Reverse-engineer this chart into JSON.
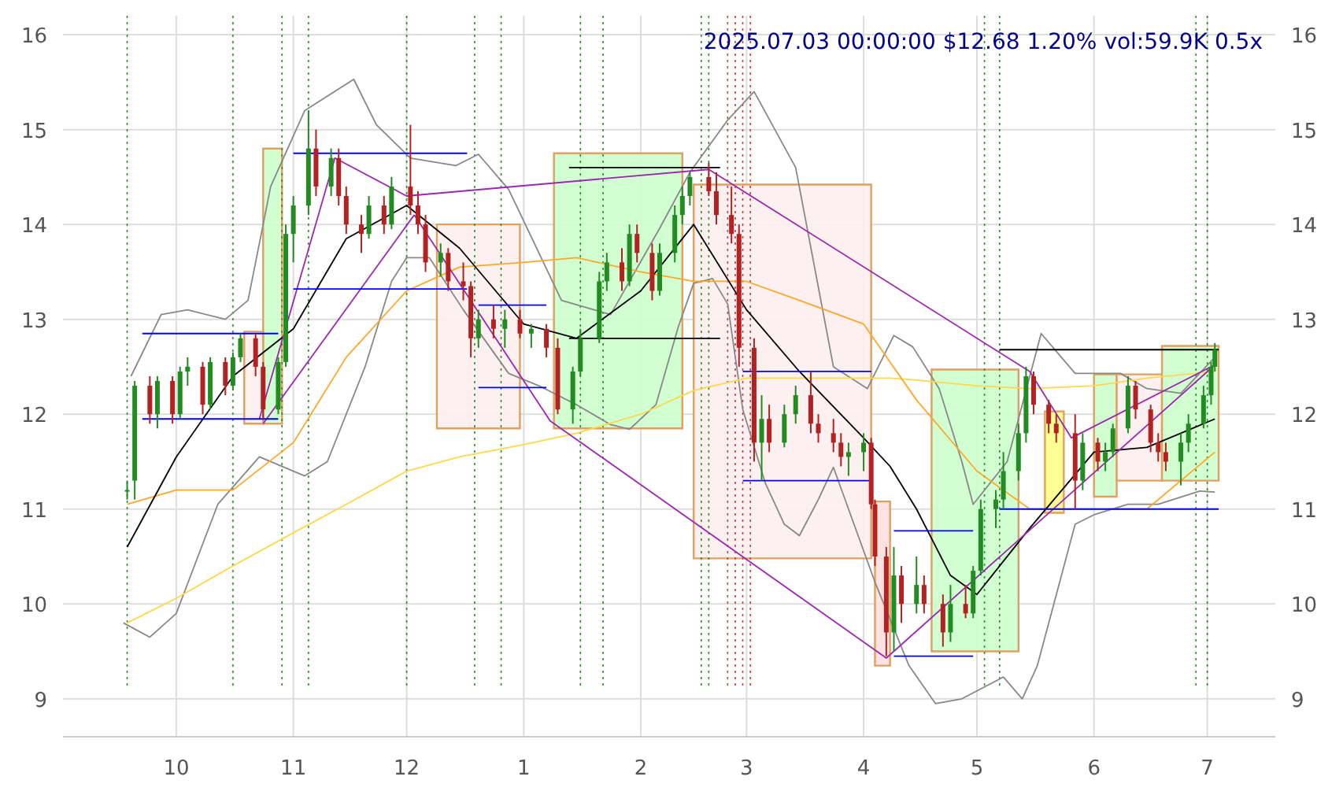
{
  "chart_data": {
    "type": "candlestick",
    "title": "2025.07.03 00:00:00 $12.68 1.20% vol:59.9K 0.5x",
    "xlim": [
      "2024-09-01",
      "2025-07-19"
    ],
    "xticks": [
      {
        "value": "2024-10-01",
        "label": "10"
      },
      {
        "value": "2024-11-01",
        "label": "11"
      },
      {
        "value": "2024-12-01",
        "label": "12"
      },
      {
        "value": "2025-01-01",
        "label": "1"
      },
      {
        "value": "2025-02-01",
        "label": "2"
      },
      {
        "value": "2025-03-01",
        "label": "3"
      },
      {
        "value": "2025-04-01",
        "label": "4"
      },
      {
        "value": "2025-05-01",
        "label": "5"
      },
      {
        "value": "2025-06-01",
        "label": "6"
      },
      {
        "value": "2025-07-01",
        "label": "7"
      }
    ],
    "ylim": [
      8.6,
      16.2
    ],
    "yticks": [
      9,
      10,
      11,
      12,
      13,
      14,
      15,
      16
    ],
    "y2lim": [
      8.6,
      16.2
    ],
    "y2ticks": [
      9,
      10,
      11,
      12,
      13,
      14,
      15,
      16
    ],
    "grid": true,
    "x": [
      "2024-09-18",
      "2024-09-20",
      "2024-09-24",
      "2024-09-26",
      "2024-09-30",
      "2024-10-02",
      "2024-10-04",
      "2024-10-08",
      "2024-10-10",
      "2024-10-14",
      "2024-10-16",
      "2024-10-18",
      "2024-10-22",
      "2024-10-24",
      "2024-10-28",
      "2024-10-30",
      "2024-11-01",
      "2024-11-05",
      "2024-11-07",
      "2024-11-11",
      "2024-11-13",
      "2024-11-15",
      "2024-11-19",
      "2024-11-21",
      "2024-11-25",
      "2024-11-27",
      "2024-12-02",
      "2024-12-04",
      "2024-12-06",
      "2024-12-10",
      "2024-12-12",
      "2024-12-16",
      "2024-12-18",
      "2024-12-20",
      "2024-12-24",
      "2024-12-27",
      "2024-12-31",
      "2025-01-03",
      "2025-01-07",
      "2025-01-10",
      "2025-01-14",
      "2025-01-16",
      "2025-01-21",
      "2025-01-23",
      "2025-01-27",
      "2025-01-29",
      "2025-01-31",
      "2025-02-04",
      "2025-02-06",
      "2025-02-10",
      "2025-02-12",
      "2025-02-14",
      "2025-02-19",
      "2025-02-21",
      "2025-02-25",
      "2025-02-27",
      "2025-03-03",
      "2025-03-05",
      "2025-03-07",
      "2025-03-11",
      "2025-03-14",
      "2025-03-18",
      "2025-03-20",
      "2025-03-24",
      "2025-03-26",
      "2025-03-28",
      "2025-04-01",
      "2025-04-03",
      "2025-04-04",
      "2025-04-07",
      "2025-04-09",
      "2025-04-11",
      "2025-04-15",
      "2025-04-17",
      "2025-04-22",
      "2025-04-24",
      "2025-04-28",
      "2025-04-30",
      "2025-05-02",
      "2025-05-06",
      "2025-05-08",
      "2025-05-12",
      "2025-05-14",
      "2025-05-16",
      "2025-05-20",
      "2025-05-22",
      "2025-05-27",
      "2025-05-29",
      "2025-06-02",
      "2025-06-04",
      "2025-06-06",
      "2025-06-10",
      "2025-06-12",
      "2025-06-16",
      "2025-06-18",
      "2025-06-20",
      "2025-06-24",
      "2025-06-26",
      "2025-06-30",
      "2025-07-02",
      "2025-07-03"
    ],
    "ohlc": [
      [
        11.2,
        11.3,
        11.1,
        11.2
      ],
      [
        11.3,
        12.35,
        11.1,
        12.3
      ],
      [
        12.3,
        12.4,
        11.9,
        12.0
      ],
      [
        12.0,
        12.4,
        11.85,
        12.35
      ],
      [
        12.35,
        12.4,
        11.9,
        12.0
      ],
      [
        12.0,
        12.5,
        11.95,
        12.45
      ],
      [
        12.45,
        12.6,
        12.3,
        12.5
      ],
      [
        12.5,
        12.55,
        12.0,
        12.1
      ],
      [
        12.1,
        12.6,
        12.05,
        12.55
      ],
      [
        12.55,
        12.6,
        12.2,
        12.3
      ],
      [
        12.3,
        12.65,
        12.25,
        12.6
      ],
      [
        12.6,
        12.85,
        12.55,
        12.8
      ],
      [
        12.8,
        12.85,
        12.4,
        12.5
      ],
      [
        12.5,
        12.55,
        11.95,
        12.05
      ],
      [
        12.05,
        12.6,
        12.0,
        12.55
      ],
      [
        12.55,
        14.0,
        12.5,
        13.9
      ],
      [
        13.9,
        14.3,
        13.6,
        14.2
      ],
      [
        14.2,
        15.2,
        14.1,
        14.8
      ],
      [
        14.8,
        15.0,
        14.3,
        14.4
      ],
      [
        14.4,
        14.8,
        14.3,
        14.7
      ],
      [
        14.7,
        14.8,
        14.2,
        14.3
      ],
      [
        14.3,
        14.4,
        13.9,
        14.0
      ],
      [
        14.0,
        14.1,
        13.7,
        13.9
      ],
      [
        13.9,
        14.3,
        13.85,
        14.2
      ],
      [
        14.2,
        14.3,
        13.9,
        14.0
      ],
      [
        14.0,
        14.5,
        13.95,
        14.4
      ],
      [
        14.4,
        15.05,
        14.1,
        14.2
      ],
      [
        14.2,
        14.35,
        13.9,
        14.0
      ],
      [
        14.0,
        14.1,
        13.5,
        13.6
      ],
      [
        13.6,
        13.8,
        13.45,
        13.7
      ],
      [
        13.7,
        13.75,
        13.3,
        13.4
      ],
      [
        13.4,
        13.6,
        13.2,
        13.35
      ],
      [
        13.35,
        13.4,
        12.6,
        12.8
      ],
      [
        12.8,
        13.1,
        12.7,
        13.0
      ],
      [
        13.0,
        13.15,
        12.8,
        12.9
      ],
      [
        12.9,
        13.1,
        12.7,
        13.0
      ],
      [
        13.0,
        13.1,
        12.8,
        12.85
      ],
      [
        12.85,
        12.95,
        12.7,
        12.9
      ],
      [
        12.9,
        12.95,
        12.6,
        12.7
      ],
      [
        12.7,
        12.8,
        12.0,
        12.05
      ],
      [
        12.05,
        12.5,
        11.9,
        12.45
      ],
      [
        12.45,
        12.9,
        12.4,
        12.8
      ],
      [
        12.8,
        13.5,
        12.75,
        13.4
      ],
      [
        13.4,
        13.7,
        13.3,
        13.6
      ],
      [
        13.6,
        13.75,
        13.3,
        13.4
      ],
      [
        13.4,
        14.0,
        13.35,
        13.9
      ],
      [
        13.9,
        14.0,
        13.6,
        13.7
      ],
      [
        13.7,
        13.8,
        13.2,
        13.3
      ],
      [
        13.3,
        13.8,
        13.25,
        13.7
      ],
      [
        13.7,
        14.2,
        13.6,
        14.1
      ],
      [
        14.1,
        14.4,
        14.0,
        14.3
      ],
      [
        14.3,
        14.55,
        14.2,
        14.5
      ],
      [
        14.5,
        14.65,
        14.3,
        14.35
      ],
      [
        14.35,
        14.55,
        14.0,
        14.1
      ],
      [
        14.1,
        14.4,
        13.8,
        13.9
      ],
      [
        13.9,
        14.0,
        12.5,
        12.7
      ],
      [
        12.7,
        12.8,
        11.5,
        11.7
      ],
      [
        11.7,
        12.2,
        11.3,
        11.95
      ],
      [
        11.95,
        12.1,
        11.6,
        11.7
      ],
      [
        11.7,
        12.1,
        11.65,
        12.0
      ],
      [
        12.0,
        12.3,
        11.9,
        12.2
      ],
      [
        12.2,
        12.45,
        11.8,
        11.9
      ],
      [
        11.9,
        12.0,
        11.7,
        11.8
      ],
      [
        11.8,
        11.95,
        11.6,
        11.7
      ],
      [
        11.7,
        11.8,
        11.45,
        11.55
      ],
      [
        11.55,
        11.7,
        11.35,
        11.6
      ],
      [
        11.6,
        11.8,
        11.4,
        11.7
      ],
      [
        11.7,
        11.75,
        11.0,
        11.05
      ],
      [
        11.05,
        11.1,
        10.4,
        10.5
      ],
      [
        10.5,
        10.6,
        9.45,
        9.7
      ],
      [
        9.7,
        10.6,
        9.5,
        10.3
      ],
      [
        10.3,
        10.4,
        9.8,
        10.0
      ],
      [
        10.0,
        10.5,
        9.9,
        10.2
      ],
      [
        10.2,
        10.3,
        9.9,
        10.0
      ],
      [
        10.0,
        10.1,
        9.55,
        9.7
      ],
      [
        9.7,
        10.2,
        9.6,
        10.0
      ],
      [
        10.0,
        10.2,
        9.85,
        9.9
      ],
      [
        9.9,
        10.4,
        9.85,
        10.35
      ],
      [
        10.35,
        11.1,
        10.3,
        11.0
      ],
      [
        11.0,
        11.2,
        10.8,
        11.1
      ],
      [
        11.1,
        11.6,
        11.0,
        11.4
      ],
      [
        11.4,
        11.9,
        11.3,
        11.8
      ],
      [
        11.8,
        12.5,
        11.7,
        12.4
      ],
      [
        12.4,
        12.45,
        12.0,
        12.1
      ],
      [
        12.1,
        12.15,
        11.8,
        11.9
      ],
      [
        11.9,
        12.0,
        11.7,
        11.8
      ],
      [
        11.8,
        12.0,
        11.0,
        11.3
      ],
      [
        11.3,
        11.8,
        11.2,
        11.7
      ],
      [
        11.7,
        11.75,
        11.4,
        11.5
      ],
      [
        11.5,
        11.7,
        11.4,
        11.6
      ],
      [
        11.6,
        11.9,
        11.55,
        11.85
      ],
      [
        11.85,
        12.4,
        11.8,
        12.3
      ],
      [
        12.3,
        12.35,
        11.95,
        12.05
      ],
      [
        12.05,
        12.1,
        11.6,
        11.7
      ],
      [
        11.7,
        11.8,
        11.5,
        11.6
      ],
      [
        11.6,
        11.7,
        11.4,
        11.5
      ],
      [
        11.5,
        11.8,
        11.25,
        11.7
      ],
      [
        11.7,
        12.0,
        11.6,
        11.9
      ],
      [
        11.9,
        12.3,
        11.85,
        12.2
      ],
      [
        12.2,
        12.55,
        12.1,
        12.5
      ],
      [
        12.5,
        12.75,
        12.45,
        12.68
      ]
    ],
    "series": [
      {
        "type": "area",
        "color": "#ccffcc",
        "x": [
          "2024-10-24",
          "2024-10-24",
          "2024-10-29",
          "2024-10-29",
          "2024-10-24"
        ],
        "values": [
          11.9,
          14.8,
          14.8,
          11.9,
          11.9
        ]
      },
      {
        "type": "area",
        "color": "#fdeeee",
        "x": [
          "2024-10-19",
          "2024-10-19",
          "2024-10-24",
          "2024-10-24",
          "2024-10-19"
        ],
        "values": [
          11.9,
          12.87,
          12.87,
          11.9,
          11.9
        ]
      },
      {
        "type": "area",
        "color": "#fdeeee",
        "x": [
          "2024-12-09",
          "2024-12-09",
          "2024-12-31",
          "2024-12-31",
          "2024-12-09"
        ],
        "values": [
          11.85,
          14.0,
          14.0,
          11.85,
          11.85
        ]
      },
      {
        "type": "area",
        "color": "#ccffcc",
        "x": [
          "2025-01-09",
          "2025-01-09",
          "2025-02-12",
          "2025-02-12",
          "2025-01-09"
        ],
        "values": [
          11.85,
          14.75,
          14.75,
          11.85,
          11.85
        ]
      },
      {
        "type": "area",
        "color": "#fdeeee",
        "x": [
          "2025-02-15",
          "2025-02-15",
          "2025-04-03",
          "2025-04-03",
          "2025-02-15"
        ],
        "values": [
          10.48,
          14.42,
          14.42,
          10.48,
          10.48
        ]
      },
      {
        "type": "area",
        "color": "#fbe0e0",
        "x": [
          "2025-04-04",
          "2025-04-04",
          "2025-04-08",
          "2025-04-08",
          "2025-04-04"
        ],
        "values": [
          9.35,
          11.08,
          11.08,
          9.35,
          9.35
        ]
      },
      {
        "type": "area",
        "color": "#ccffcc",
        "x": [
          "2025-04-19",
          "2025-04-19",
          "2025-05-12",
          "2025-05-12",
          "2025-04-19"
        ],
        "values": [
          9.5,
          12.47,
          12.47,
          9.5,
          9.5
        ]
      },
      {
        "type": "area",
        "color": "#ffff88",
        "x": [
          "2025-05-19",
          "2025-05-19",
          "2025-05-24",
          "2025-05-24",
          "2025-05-19"
        ],
        "values": [
          10.96,
          12.03,
          12.03,
          10.96,
          10.96
        ]
      },
      {
        "type": "area",
        "color": "#ccffcc",
        "x": [
          "2025-06-01",
          "2025-06-01",
          "2025-06-07",
          "2025-06-07",
          "2025-06-01"
        ],
        "values": [
          11.13,
          12.42,
          12.42,
          11.13,
          11.13
        ]
      },
      {
        "type": "area",
        "color": "#fdeeee",
        "x": [
          "2025-06-07",
          "2025-06-07",
          "2025-06-19",
          "2025-06-19",
          "2025-06-07"
        ],
        "values": [
          11.3,
          12.42,
          12.42,
          11.3,
          11.3
        ]
      },
      {
        "type": "area",
        "color": "#ccffcc",
        "x": [
          "2025-06-19",
          "2025-06-19",
          "2025-07-04",
          "2025-07-04",
          "2025-06-19"
        ],
        "values": [
          11.3,
          12.72,
          12.72,
          11.3,
          11.3
        ]
      },
      {
        "type": "line",
        "color": "#888888",
        "x": [
          "2024-09-19",
          "2024-09-27",
          "2024-10-04",
          "2024-10-14",
          "2024-10-20",
          "2024-10-26",
          "2024-11-04",
          "2024-11-17",
          "2024-11-23",
          "2024-12-02",
          "2024-12-14",
          "2024-12-20",
          "2024-12-28",
          "2025-01-11",
          "2025-01-24",
          "2025-02-06",
          "2025-02-14",
          "2025-02-24",
          "2025-03-03",
          "2025-03-14",
          "2025-03-24",
          "2025-04-02",
          "2025-04-09",
          "2025-04-14",
          "2025-04-21",
          "2025-04-27",
          "2025-04-30",
          "2025-05-09",
          "2025-05-18",
          "2025-05-27",
          "2025-06-08",
          "2025-06-15",
          "2025-06-24",
          "2025-07-03"
        ],
        "values": [
          12.4,
          13.05,
          13.1,
          13.0,
          13.2,
          14.4,
          15.2,
          15.53,
          15.05,
          14.7,
          14.62,
          14.74,
          14.37,
          13.2,
          13.05,
          13.96,
          14.55,
          15.1,
          15.4,
          14.6,
          12.5,
          12.27,
          12.83,
          12.71,
          12.27,
          11.5,
          11.05,
          11.5,
          12.85,
          12.43,
          12.43,
          12.27,
          12.22,
          12.6
        ]
      },
      {
        "type": "line",
        "color": "#888888",
        "x": [
          "2024-09-17",
          "2024-09-24",
          "2024-10-01",
          "2024-10-12",
          "2024-10-23",
          "2024-11-04",
          "2024-11-10",
          "2024-11-20",
          "2024-11-27",
          "2024-12-01",
          "2024-12-07",
          "2024-12-16",
          "2024-12-28",
          "2025-01-05",
          "2025-01-15",
          "2025-01-24",
          "2025-01-29",
          "2025-02-05",
          "2025-02-11",
          "2025-02-15",
          "2025-02-20",
          "2025-02-24",
          "2025-02-28",
          "2025-03-06",
          "2025-03-11",
          "2025-03-15",
          "2025-03-20",
          "2025-03-24",
          "2025-04-04",
          "2025-04-13",
          "2025-04-20",
          "2025-04-27",
          "2025-05-08",
          "2025-05-13",
          "2025-05-17",
          "2025-05-27",
          "2025-06-01",
          "2025-06-10",
          "2025-06-18",
          "2025-06-29",
          "2025-07-03"
        ],
        "values": [
          9.8,
          9.65,
          9.9,
          11.05,
          11.55,
          11.35,
          11.5,
          12.5,
          13.4,
          13.65,
          13.65,
          13.1,
          12.43,
          12.3,
          12.1,
          11.89,
          11.84,
          12.1,
          12.93,
          13.38,
          13.43,
          13.16,
          12.05,
          11.27,
          10.84,
          10.72,
          11.1,
          11.44,
          10.23,
          9.35,
          8.95,
          9.0,
          9.23,
          9.0,
          9.35,
          10.84,
          10.94,
          11.05,
          11.05,
          11.19,
          11.18
        ]
      },
      {
        "type": "line",
        "color": "#ffd84a",
        "x": [
          "2024-09-18",
          "2024-10-01",
          "2024-10-16",
          "2024-11-01",
          "2024-11-15",
          "2024-12-01",
          "2024-12-15",
          "2025-01-01",
          "2025-01-15",
          "2025-02-01",
          "2025-02-15",
          "2025-03-01",
          "2025-03-15",
          "2025-04-01",
          "2025-04-08",
          "2025-04-15",
          "2025-05-01",
          "2025-05-15",
          "2025-06-01",
          "2025-06-15",
          "2025-07-03"
        ],
        "values": [
          9.8,
          10.06,
          10.4,
          10.75,
          11.05,
          11.4,
          11.55,
          11.68,
          11.8,
          12.0,
          12.25,
          12.38,
          12.38,
          12.38,
          12.38,
          12.36,
          12.3,
          12.27,
          12.3,
          12.38,
          12.45
        ]
      },
      {
        "type": "line",
        "color": "#ffa726",
        "x": [
          "2024-09-18",
          "2024-10-01",
          "2024-10-16",
          "2024-11-01",
          "2024-11-15",
          "2024-12-01",
          "2024-12-15",
          "2025-01-01",
          "2025-01-15",
          "2025-02-01",
          "2025-02-15",
          "2025-03-01",
          "2025-03-15",
          "2025-04-01",
          "2025-04-08",
          "2025-04-15",
          "2025-05-01",
          "2025-05-15",
          "2025-06-01",
          "2025-06-15",
          "2025-07-03"
        ],
        "values": [
          11.05,
          11.2,
          11.2,
          11.7,
          12.6,
          13.3,
          13.55,
          13.6,
          13.65,
          13.5,
          13.4,
          13.4,
          13.2,
          12.95,
          12.55,
          12.15,
          11.4,
          11.0,
          11.0,
          11.0,
          11.6
        ]
      },
      {
        "type": "line",
        "color": "#000000",
        "x": [
          "2024-09-18",
          "2024-10-01",
          "2024-10-16",
          "2024-11-01",
          "2024-11-15",
          "2024-12-01",
          "2024-12-15",
          "2025-01-01",
          "2025-01-15",
          "2025-02-01",
          "2025-02-15",
          "2025-03-01",
          "2025-03-15",
          "2025-04-01",
          "2025-04-08",
          "2025-04-15",
          "2025-04-24",
          "2025-05-01",
          "2025-05-15",
          "2025-06-01",
          "2025-06-15",
          "2025-07-03"
        ],
        "values": [
          10.6,
          11.55,
          12.4,
          12.9,
          13.85,
          14.2,
          13.75,
          12.95,
          12.8,
          13.3,
          14.0,
          13.1,
          12.45,
          11.75,
          11.45,
          11.0,
          10.3,
          10.1,
          10.8,
          11.6,
          11.65,
          11.95
        ]
      },
      {
        "type": "line",
        "color": "#9c27b0",
        "x": [
          "2024-10-23",
          "2024-11-12",
          "2024-12-01",
          "2025-02-19",
          "2025-05-15",
          "2025-05-26",
          "2025-07-03"
        ],
        "values": [
          11.95,
          14.7,
          14.3,
          14.58,
          12.45,
          11.75,
          12.52
        ]
      },
      {
        "type": "line",
        "color": "#9c27b0",
        "x": [
          "2024-12-03",
          "2025-01-08",
          "2025-04-07",
          "2025-07-03"
        ],
        "values": [
          14.1,
          11.93,
          9.43,
          12.52
        ]
      },
      {
        "type": "line",
        "color": "#9c27b0",
        "x": [
          "2024-10-24",
          "2024-12-03"
        ],
        "values": [
          11.9,
          14.1
        ]
      },
      {
        "type": "line",
        "color": "#0000ff",
        "x": [
          "2024-09-22",
          "2024-10-28"
        ],
        "values": [
          12.85,
          12.85
        ]
      },
      {
        "type": "line",
        "color": "#0000ff",
        "x": [
          "2024-09-22",
          "2024-10-28"
        ],
        "values": [
          11.95,
          11.95
        ]
      },
      {
        "type": "line",
        "color": "#0000ff",
        "x": [
          "2024-11-01",
          "2024-12-17"
        ],
        "values": [
          14.75,
          14.75
        ]
      },
      {
        "type": "line",
        "color": "#0000ff",
        "x": [
          "2024-11-01",
          "2024-12-17"
        ],
        "values": [
          13.32,
          13.32
        ]
      },
      {
        "type": "line",
        "color": "#0000ff",
        "x": [
          "2024-12-20",
          "2025-01-07"
        ],
        "values": [
          13.15,
          13.15
        ]
      },
      {
        "type": "line",
        "color": "#0000ff",
        "x": [
          "2024-12-20",
          "2025-01-07"
        ],
        "values": [
          12.28,
          12.28
        ]
      },
      {
        "type": "line",
        "color": "#000000",
        "x": [
          "2025-01-13",
          "2025-02-22"
        ],
        "values": [
          14.6,
          14.6
        ]
      },
      {
        "type": "line",
        "color": "#000000",
        "x": [
          "2025-01-13",
          "2025-02-22"
        ],
        "values": [
          12.8,
          12.8
        ]
      },
      {
        "type": "line",
        "color": "#0000ff",
        "x": [
          "2025-02-28",
          "2025-04-03"
        ],
        "values": [
          12.45,
          12.45
        ]
      },
      {
        "type": "line",
        "color": "#0000ff",
        "x": [
          "2025-02-28",
          "2025-04-03"
        ],
        "values": [
          11.3,
          11.3
        ]
      },
      {
        "type": "line",
        "color": "#0000ff",
        "x": [
          "2025-04-09",
          "2025-04-30"
        ],
        "values": [
          10.77,
          10.77
        ]
      },
      {
        "type": "line",
        "color": "#0000ff",
        "x": [
          "2025-04-09",
          "2025-04-30"
        ],
        "values": [
          9.45,
          9.45
        ]
      },
      {
        "type": "line",
        "color": "#000000",
        "x": [
          "2025-05-07",
          "2025-07-04"
        ],
        "values": [
          12.68,
          12.68
        ]
      },
      {
        "type": "line",
        "color": "#0000ff",
        "x": [
          "2025-05-07",
          "2025-07-04"
        ],
        "values": [
          11.0,
          11.0
        ]
      }
    ],
    "ref_lines": [
      {
        "axis": "x",
        "value": "2024-09-18",
        "color": "#2e8b2e",
        "line_style": "dotted"
      },
      {
        "axis": "x",
        "value": "2024-10-16",
        "color": "#2e8b2e",
        "line_style": "dotted"
      },
      {
        "axis": "x",
        "value": "2024-10-29",
        "color": "#2e8b2e",
        "line_style": "dotted"
      },
      {
        "axis": "x",
        "value": "2024-11-05",
        "color": "#2e8b2e",
        "line_style": "dotted"
      },
      {
        "axis": "x",
        "value": "2024-12-01",
        "color": "#2e8b2e",
        "line_style": "dotted"
      },
      {
        "axis": "x",
        "value": "2024-12-19",
        "color": "#2e8b2e",
        "line_style": "dotted"
      },
      {
        "axis": "x",
        "value": "2024-12-26",
        "color": "#2e8b2e",
        "line_style": "dotted"
      },
      {
        "axis": "x",
        "value": "2025-01-16",
        "color": "#2e8b2e",
        "line_style": "dotted"
      },
      {
        "axis": "x",
        "value": "2025-01-22",
        "color": "#2e8b2e",
        "line_style": "dotted"
      },
      {
        "axis": "x",
        "value": "2025-02-17",
        "color": "#2e8b2e",
        "line_style": "dotted"
      },
      {
        "axis": "x",
        "value": "2025-02-19",
        "color": "#2e8b2e",
        "line_style": "dotted"
      },
      {
        "axis": "x",
        "value": "2025-02-24",
        "color": "#c04040",
        "line_style": "dotted"
      },
      {
        "axis": "x",
        "value": "2025-02-26",
        "color": "#c04040",
        "line_style": "dotted"
      },
      {
        "axis": "x",
        "value": "2025-02-28",
        "color": "#c04040",
        "line_style": "dotted"
      },
      {
        "axis": "x",
        "value": "2025-03-02",
        "color": "#c04040",
        "line_style": "dotted"
      },
      {
        "axis": "x",
        "value": "2025-05-03",
        "color": "#2e8b2e",
        "line_style": "dotted"
      },
      {
        "axis": "x",
        "value": "2025-05-07",
        "color": "#2e8b2e",
        "line_style": "dotted"
      },
      {
        "axis": "x",
        "value": "2025-06-28",
        "color": "#2e8b2e",
        "line_style": "dotted"
      },
      {
        "axis": "x",
        "value": "2025-07-01",
        "color": "#2e8b2e",
        "line_style": "dotted"
      }
    ]
  }
}
